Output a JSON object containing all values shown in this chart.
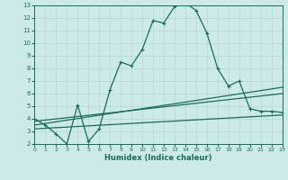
{
  "xlabel": "Humidex (Indice chaleur)",
  "bg_color": "#cceaea",
  "line_color": "#1a6b5a",
  "grid_color": "#b8dada",
  "line1_x": [
    0,
    1,
    2,
    3,
    4,
    5,
    6,
    7,
    8,
    9,
    10,
    11,
    12,
    13,
    14,
    15,
    16,
    17,
    18,
    19,
    20,
    21,
    22,
    23
  ],
  "line1_y": [
    4.0,
    3.5,
    2.8,
    2.0,
    5.1,
    2.2,
    3.2,
    6.3,
    8.5,
    8.2,
    9.5,
    11.8,
    11.6,
    12.9,
    13.2,
    12.6,
    10.8,
    8.0,
    6.6,
    7.0,
    4.8,
    4.6,
    4.6,
    4.5
  ],
  "line2_x": [
    0,
    23
  ],
  "line2_y": [
    3.5,
    6.5
  ],
  "line3_x": [
    0,
    23
  ],
  "line3_y": [
    3.2,
    4.3
  ],
  "line4_x": [
    0,
    23
  ],
  "line4_y": [
    3.8,
    6.0
  ],
  "xlim": [
    0,
    23
  ],
  "ylim": [
    2,
    13
  ],
  "yticks": [
    2,
    3,
    4,
    5,
    6,
    7,
    8,
    9,
    10,
    11,
    12,
    13
  ],
  "xticks": [
    0,
    1,
    2,
    3,
    4,
    5,
    6,
    7,
    8,
    9,
    10,
    11,
    12,
    13,
    14,
    15,
    16,
    17,
    18,
    19,
    20,
    21,
    22,
    23
  ]
}
